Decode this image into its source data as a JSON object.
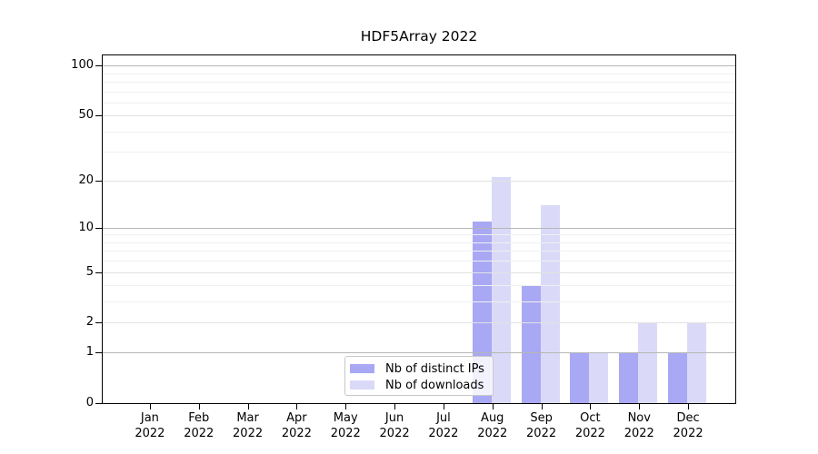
{
  "figure": {
    "title": "HDF5Array 2022",
    "background": "#ffffff"
  },
  "chart_data": {
    "type": "bar",
    "title": "HDF5Array 2022",
    "yscale": "log1p",
    "ylim": [
      0,
      115
    ],
    "y_ticks": [
      0,
      1,
      2,
      5,
      10,
      20,
      50,
      100
    ],
    "grid": {
      "decade_values": [
        1,
        10,
        100
      ],
      "labeled_values": [
        2,
        5,
        20,
        50
      ],
      "minor_values": [
        3,
        4,
        6,
        7,
        8,
        9,
        30,
        40,
        60,
        70,
        80,
        90
      ],
      "decade_color": "#b6b6b6",
      "labeled_color": "#e2e2e2",
      "minor_color": "#f0f0f0"
    },
    "months": [
      "Jan",
      "Feb",
      "Mar",
      "Apr",
      "May",
      "Jun",
      "Jul",
      "Aug",
      "Sep",
      "Oct",
      "Nov",
      "Dec"
    ],
    "year": "2022",
    "series": [
      {
        "name": "Nb of distinct IPs",
        "color": "#a8a8f4",
        "values": [
          0,
          0,
          0,
          0,
          0,
          0,
          0,
          11,
          4,
          1,
          1,
          1
        ]
      },
      {
        "name": "Nb of downloads",
        "color": "#dadaf8",
        "values": [
          0,
          0,
          0,
          0,
          0,
          0,
          0,
          21,
          14,
          1,
          2,
          2
        ]
      }
    ],
    "legend_position": "bottom-center-left"
  }
}
